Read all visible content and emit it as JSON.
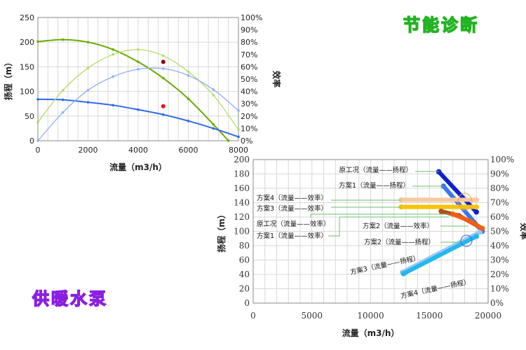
{
  "titles": {
    "top_right": "节能诊断",
    "bottom_left": "供暖水泵"
  },
  "chart_data": [
    {
      "type": "line",
      "xlabel": "流量（m3/h）",
      "ylabel": "扬程（m）",
      "y2label": "效率",
      "xlim": [
        0,
        8000
      ],
      "ylim": [
        0,
        250
      ],
      "y2lim": [
        0,
        100
      ],
      "xticks": [
        "0",
        "2000",
        "4000",
        "6000",
        "8000"
      ],
      "yticks": [
        "0",
        "50",
        "100",
        "150",
        "200",
        "250"
      ],
      "y2ticks": [
        "0%",
        "10%",
        "20%",
        "30%",
        "40%",
        "50%",
        "60%",
        "70%",
        "80%",
        "90%",
        "100%"
      ],
      "grid": true,
      "series": [
        {
          "name": "head-green",
          "axis": "y",
          "color": "#6aaa00",
          "width": 2,
          "x": [
            0,
            1000,
            2000,
            3000,
            4000,
            5000,
            6000,
            7000,
            7600
          ],
          "y": [
            201,
            205,
            200,
            185,
            160,
            127,
            85,
            33,
            0
          ]
        },
        {
          "name": "head-blue",
          "axis": "y",
          "color": "#2f6be8",
          "width": 2,
          "x": [
            0,
            1000,
            2000,
            3000,
            4000,
            5000,
            6000,
            7000,
            8000
          ],
          "y": [
            84,
            83,
            78,
            72,
            63,
            53,
            40,
            25,
            8
          ]
        },
        {
          "name": "efficiency-lightgreen",
          "axis": "y2",
          "color": "#b4dc6a",
          "width": 1.3,
          "x": [
            0,
            1000,
            2000,
            3000,
            4000,
            5000,
            6000,
            7000,
            8000
          ],
          "y": [
            15,
            41,
            59,
            70,
            74,
            69,
            56,
            37,
            9
          ]
        },
        {
          "name": "efficiency-lightblue",
          "axis": "y2",
          "color": "#8fb0f5",
          "width": 1.3,
          "x": [
            0,
            1000,
            2000,
            3000,
            4000,
            5000,
            6000,
            7000,
            8000
          ],
          "y": [
            0,
            23,
            41,
            52,
            58,
            58.5,
            53,
            41.5,
            24.5
          ]
        }
      ],
      "points": [
        {
          "name": "operating-point-darkred",
          "x": 5000,
          "y": 160,
          "color": "#8b0000"
        },
        {
          "name": "operating-point-red",
          "x": 5000,
          "y": 70,
          "color": "#ee1111"
        }
      ]
    },
    {
      "type": "scatter",
      "xlabel": "流量（m3/h）",
      "ylabel": "扬程（m）",
      "y2label": "效率",
      "xlim": [
        0,
        20000
      ],
      "ylim": [
        0,
        200
      ],
      "y2lim": [
        0,
        100
      ],
      "xticks": [
        "0",
        "5000",
        "10000",
        "15000",
        "20000"
      ],
      "yticks": [
        "0",
        "20",
        "40",
        "60",
        "80",
        "100",
        "120",
        "140",
        "160",
        "180",
        "200"
      ],
      "y2ticks": [
        "0%",
        "10%",
        "20%",
        "30%",
        "40%",
        "50%",
        "60%",
        "70%",
        "80%",
        "90%",
        "100%"
      ],
      "grid": true,
      "series": [
        {
          "name": "原工况（流量——扬程）",
          "axis": "y",
          "color": "#1020d0",
          "x": [
            15800,
            19000
          ],
          "y": [
            183,
            127
          ]
        },
        {
          "name": "方案1（流量——扬程）",
          "axis": "y",
          "color": "#3a78f0",
          "x": [
            16200,
            19500
          ],
          "y": [
            163,
            100
          ]
        },
        {
          "name": "方案3（流量——扬程）",
          "axis": "y",
          "color": "#9cc8f4",
          "x": [
            12700,
            19300
          ],
          "y": [
            43,
            99
          ]
        },
        {
          "name": "方案4（流量——扬程）",
          "axis": "y",
          "color": "#22b8f0",
          "x": [
            12800,
            19000
          ],
          "y": [
            41,
            93
          ]
        },
        {
          "name": "方案4（流量——效率）",
          "axis": "y2",
          "color": "#f8c8a0",
          "x": [
            12600,
            19000
          ],
          "y": [
            72,
            72
          ]
        },
        {
          "name": "方案3（流量——效率）",
          "axis": "y2",
          "color": "#f8c400",
          "x": [
            12600,
            19000
          ],
          "y": [
            67,
            67
          ]
        },
        {
          "name": "原工况（流量——效率）",
          "axis": "y2",
          "color": "#b05020",
          "x": [
            16000,
            17500,
            19500
          ],
          "y": [
            64,
            61,
            52
          ]
        },
        {
          "name": "方案1（流量——效率）",
          "axis": "y2",
          "color": "#f06010",
          "x": [
            17000,
            18500,
            19500
          ],
          "y": [
            62,
            57,
            52
          ]
        }
      ],
      "annotations": [
        {
          "text": "原工况（流量——扬程）"
        },
        {
          "text": "方案1（流量——扬程）"
        },
        {
          "text": "方案4（流量——效率）"
        },
        {
          "text": "方案3（流量——效率）"
        },
        {
          "text": "原工况（流量——效率）"
        },
        {
          "text": "方案1（流量——效率）"
        },
        {
          "text": "方案2（流量——效率）"
        },
        {
          "text": "方案2（流量——扬程）"
        },
        {
          "text": "方案3（流量——扬程）"
        },
        {
          "text": "方案4（流量——扬程）"
        }
      ]
    }
  ]
}
